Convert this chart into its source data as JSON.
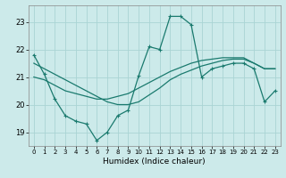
{
  "title": "",
  "xlabel": "Humidex (Indice chaleur)",
  "xlim": [
    -0.5,
    23.5
  ],
  "ylim": [
    18.5,
    23.6
  ],
  "yticks": [
    19,
    20,
    21,
    22,
    23
  ],
  "xticks": [
    0,
    1,
    2,
    3,
    4,
    5,
    6,
    7,
    8,
    9,
    10,
    11,
    12,
    13,
    14,
    15,
    16,
    17,
    18,
    19,
    20,
    21,
    22,
    23
  ],
  "bg_color": "#cceaea",
  "grid_color": "#aad4d4",
  "line_color": "#1a7a6e",
  "lines": [
    {
      "x": [
        0,
        1,
        2,
        3,
        4,
        5,
        6,
        7,
        8,
        9,
        10,
        11,
        12,
        13,
        14,
        15,
        16,
        17,
        18,
        19,
        20,
        21,
        22,
        23
      ],
      "y": [
        21.8,
        21.1,
        20.2,
        19.6,
        19.4,
        19.3,
        18.7,
        19.0,
        19.6,
        19.8,
        21.05,
        22.1,
        22.0,
        23.2,
        23.2,
        22.9,
        21.0,
        21.3,
        21.4,
        21.5,
        21.5,
        21.3,
        20.1,
        20.5
      ],
      "marker": true
    },
    {
      "x": [
        0,
        1,
        2,
        3,
        4,
        5,
        6,
        7,
        8,
        9,
        10,
        11,
        12,
        13,
        14,
        15,
        16,
        17,
        18,
        19,
        20,
        21,
        22,
        23
      ],
      "y": [
        21.0,
        20.9,
        20.7,
        20.5,
        20.4,
        20.3,
        20.2,
        20.2,
        20.3,
        20.4,
        20.6,
        20.8,
        21.0,
        21.2,
        21.35,
        21.5,
        21.6,
        21.65,
        21.7,
        21.7,
        21.7,
        21.5,
        21.3,
        21.3
      ],
      "marker": false
    },
    {
      "x": [
        0,
        1,
        2,
        3,
        4,
        5,
        6,
        7,
        8,
        9,
        10,
        11,
        12,
        13,
        14,
        15,
        16,
        17,
        18,
        19,
        20,
        21,
        22,
        23
      ],
      "y": [
        21.5,
        21.3,
        21.1,
        20.9,
        20.7,
        20.5,
        20.3,
        20.1,
        20.0,
        20.0,
        20.1,
        20.35,
        20.6,
        20.9,
        21.1,
        21.25,
        21.4,
        21.5,
        21.6,
        21.65,
        21.65,
        21.5,
        21.3,
        21.3
      ],
      "marker": false
    }
  ]
}
